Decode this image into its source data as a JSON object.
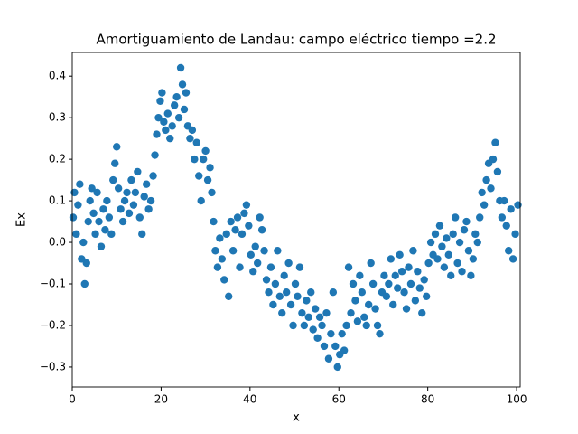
{
  "chart_data": {
    "type": "scatter",
    "title": "Amortiguamiento de Landau: campo eléctrico  tiempo =2.2",
    "x_label": "x",
    "y_label": "Ex",
    "color": "#1f77b4",
    "xlim": [
      0,
      100.8
    ],
    "ylim": [
      -0.348,
      0.457
    ],
    "xticks": [
      0,
      20,
      40,
      60,
      80,
      100
    ],
    "yticks": [
      {
        "value": -0.3,
        "label": "−0.3"
      },
      {
        "value": -0.2,
        "label": "−0.2"
      },
      {
        "value": -0.1,
        "label": "−0.1"
      },
      {
        "value": 0,
        "label": "0.0"
      },
      0.1,
      0.2,
      0.3,
      0.4
    ],
    "grid": false,
    "x": [
      0.2,
      0.5,
      0.9,
      1.3,
      1.7,
      2.1,
      2.5,
      2.8,
      3.2,
      3.6,
      4.0,
      4.4,
      4.8,
      5.2,
      5.6,
      6.0,
      6.5,
      7.0,
      7.4,
      7.8,
      8.3,
      8.8,
      9.2,
      9.6,
      10.0,
      10.4,
      10.9,
      11.4,
      11.8,
      12.3,
      12.8,
      13.3,
      13.8,
      14.2,
      14.7,
      15.2,
      15.7,
      16.2,
      16.7,
      17.2,
      17.7,
      18.2,
      18.6,
      19.0,
      19.4,
      19.8,
      20.2,
      20.6,
      21.0,
      21.5,
      22.0,
      22.5,
      23.0,
      23.5,
      24.0,
      24.4,
      24.8,
      25.2,
      25.6,
      26.0,
      26.5,
      27.0,
      27.5,
      28.0,
      28.5,
      29.0,
      29.5,
      30.0,
      30.5,
      31.0,
      31.4,
      31.8,
      32.2,
      32.7,
      33.2,
      33.7,
      34.2,
      34.7,
      35.2,
      35.7,
      36.2,
      36.7,
      37.2,
      37.7,
      38.2,
      38.7,
      39.2,
      39.7,
      40.2,
      40.7,
      41.2,
      41.7,
      42.2,
      42.7,
      43.2,
      43.7,
      44.2,
      44.7,
      45.2,
      45.7,
      46.2,
      46.7,
      47.2,
      47.7,
      48.2,
      48.7,
      49.2,
      49.7,
      50.2,
      50.7,
      51.2,
      51.7,
      52.2,
      52.7,
      53.2,
      53.7,
      54.2,
      54.7,
      55.2,
      55.7,
      56.2,
      56.7,
      57.2,
      57.7,
      58.2,
      58.7,
      59.2,
      59.7,
      60.2,
      60.7,
      61.2,
      61.7,
      62.2,
      62.7,
      63.2,
      63.7,
      64.2,
      64.7,
      65.2,
      65.7,
      66.2,
      66.7,
      67.2,
      67.7,
      68.2,
      68.7,
      69.2,
      69.7,
      70.2,
      70.7,
      71.2,
      71.7,
      72.2,
      72.7,
      73.2,
      73.7,
      74.2,
      74.7,
      75.2,
      75.7,
      76.2,
      76.7,
      77.2,
      77.7,
      78.2,
      78.7,
      79.2,
      79.7,
      80.2,
      80.7,
      81.2,
      81.7,
      82.2,
      82.7,
      83.2,
      83.7,
      84.2,
      84.7,
      85.2,
      85.7,
      86.2,
      86.7,
      87.2,
      87.7,
      88.2,
      88.7,
      89.2,
      89.7,
      90.2,
      90.7,
      91.2,
      91.7,
      92.2,
      92.7,
      93.2,
      93.7,
      94.2,
      94.7,
      95.2,
      95.7,
      96.2,
      96.7,
      97.2,
      97.7,
      98.2,
      98.7,
      99.2,
      99.7,
      100.3
    ],
    "values": [
      0.06,
      0.12,
      0.02,
      0.09,
      0.14,
      -0.04,
      0.0,
      -0.1,
      -0.05,
      0.05,
      0.1,
      0.13,
      0.07,
      0.02,
      0.12,
      0.05,
      -0.01,
      0.08,
      0.03,
      0.1,
      0.06,
      0.02,
      0.15,
      0.19,
      0.23,
      0.13,
      0.08,
      0.05,
      0.1,
      0.12,
      0.07,
      0.15,
      0.09,
      0.12,
      0.17,
      0.06,
      0.02,
      0.11,
      0.14,
      0.08,
      0.1,
      0.16,
      0.21,
      0.26,
      0.3,
      0.34,
      0.36,
      0.29,
      0.27,
      0.31,
      0.25,
      0.28,
      0.33,
      0.35,
      0.3,
      0.42,
      0.38,
      0.32,
      0.36,
      0.28,
      0.25,
      0.27,
      0.2,
      0.24,
      0.16,
      0.1,
      0.2,
      0.22,
      0.15,
      0.18,
      0.12,
      0.05,
      -0.02,
      -0.06,
      0.01,
      -0.04,
      -0.09,
      0.02,
      -0.13,
      0.05,
      -0.02,
      0.03,
      0.06,
      -0.06,
      0.02,
      0.07,
      0.09,
      0.04,
      -0.03,
      -0.07,
      -0.01,
      -0.05,
      0.06,
      0.03,
      -0.02,
      -0.09,
      -0.12,
      -0.06,
      -0.15,
      -0.1,
      -0.02,
      -0.13,
      -0.17,
      -0.08,
      -0.12,
      -0.05,
      -0.15,
      -0.2,
      -0.1,
      -0.13,
      -0.06,
      -0.17,
      -0.2,
      -0.14,
      -0.18,
      -0.12,
      -0.21,
      -0.16,
      -0.23,
      -0.18,
      -0.2,
      -0.25,
      -0.17,
      -0.28,
      -0.22,
      -0.12,
      -0.25,
      -0.3,
      -0.27,
      -0.22,
      -0.26,
      -0.2,
      -0.06,
      -0.17,
      -0.1,
      -0.14,
      -0.19,
      -0.08,
      -0.12,
      -0.18,
      -0.2,
      -0.15,
      -0.05,
      -0.1,
      -0.16,
      -0.2,
      -0.22,
      -0.12,
      -0.08,
      -0.13,
      -0.1,
      -0.04,
      -0.15,
      -0.08,
      -0.11,
      -0.03,
      -0.07,
      -0.12,
      -0.16,
      -0.06,
      -0.1,
      -0.02,
      -0.14,
      -0.07,
      -0.11,
      -0.17,
      -0.09,
      -0.13,
      -0.05,
      0.0,
      -0.03,
      0.02,
      -0.04,
      0.04,
      -0.01,
      -0.06,
      0.01,
      -0.03,
      -0.08,
      0.02,
      0.06,
      -0.05,
      0.0,
      -0.07,
      0.03,
      0.05,
      -0.02,
      -0.08,
      -0.04,
      0.02,
      0.0,
      0.06,
      0.12,
      0.09,
      0.15,
      0.19,
      0.13,
      0.2,
      0.24,
      0.17,
      0.1,
      0.06,
      0.1,
      0.04,
      -0.02,
      0.08,
      -0.04,
      0.02,
      0.09
    ]
  }
}
